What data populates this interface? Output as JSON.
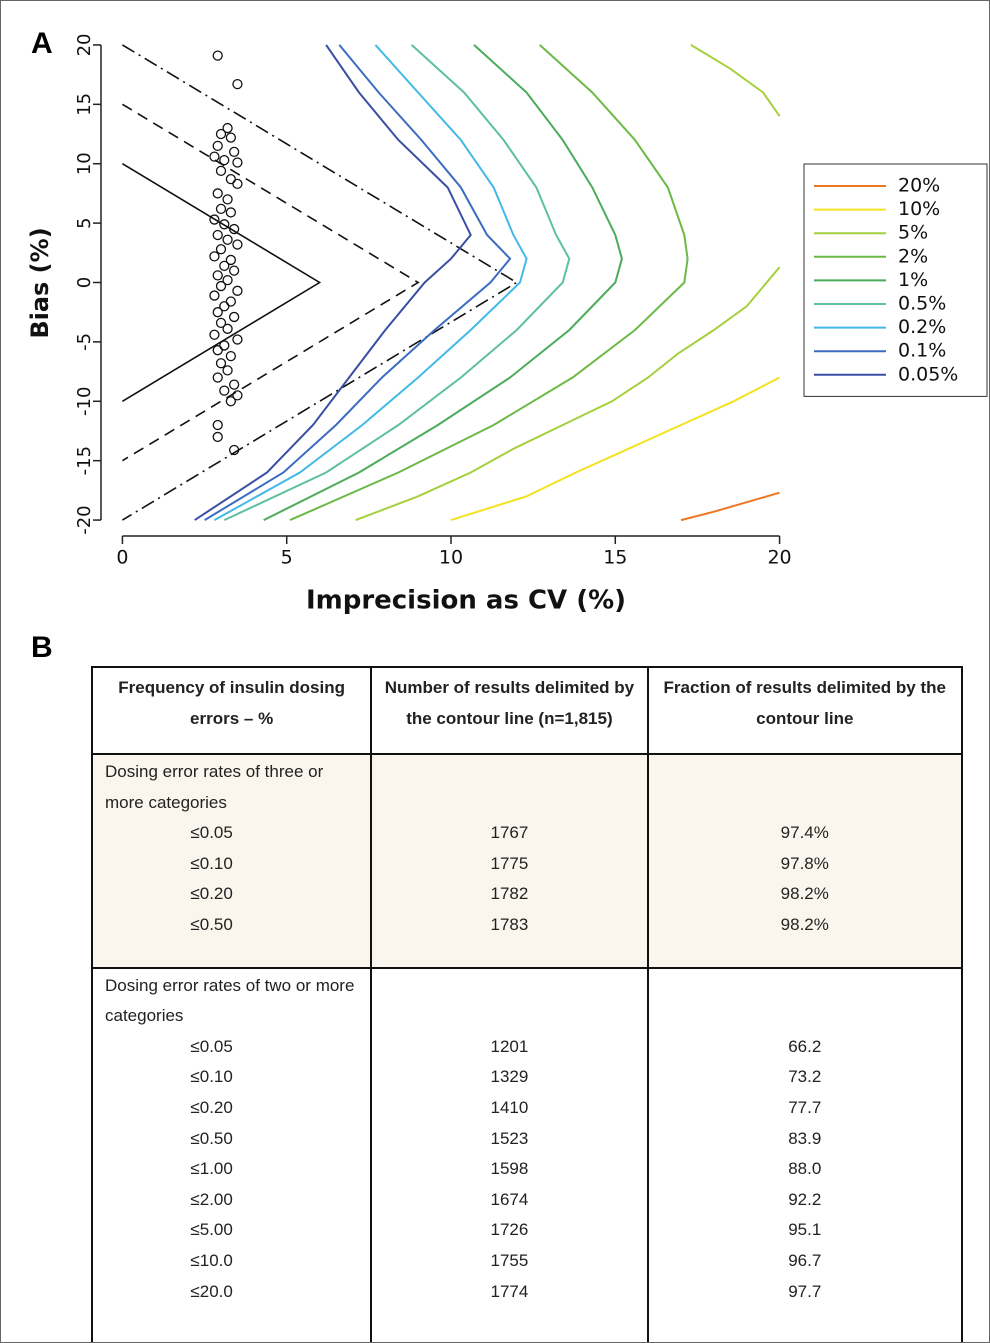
{
  "panel_labels": [
    "A",
    "B"
  ],
  "chart_data": {
    "type": "contour",
    "x_label": "Imprecision as CV (%)",
    "y_label": "Bias (%)",
    "xlim": [
      -0.5,
      20.5
    ],
    "xticks": [
      0,
      5,
      10,
      15,
      20
    ],
    "ylim": [
      -20.5,
      20.5
    ],
    "yticks": [
      -20,
      -15,
      -10,
      -5,
      0,
      5,
      10,
      15,
      20
    ],
    "legend": "right",
    "series": [
      {
        "name": "20%",
        "color": "#ee7622",
        "x": [
          20,
          19.0,
          18.0,
          17.0
        ],
        "y": [
          -17.7,
          -18.5,
          -19.3,
          -20
        ]
      },
      {
        "name": "10%",
        "color": "#f3e21f",
        "x": [
          20,
          18.6,
          17.0,
          15.4,
          13.8,
          12.3,
          10.0
        ],
        "y": [
          -8,
          -10,
          -12,
          -14,
          -16,
          -18,
          -20
        ]
      },
      {
        "name": "5%",
        "color": "#a6cf3d",
        "x": [
          17.3,
          18.5,
          19.5,
          20,
          null,
          20,
          19.0,
          18.0,
          16.9,
          16.0,
          14.9,
          13.4,
          11.9,
          10.6,
          9.0,
          7.1
        ],
        "y": [
          20,
          18,
          16,
          14,
          null,
          1.3,
          -2,
          -4,
          -6,
          -8,
          -10,
          -12,
          -14,
          -16,
          -18,
          -20
        ]
      },
      {
        "name": "2%",
        "color": "#6cba45",
        "x": [
          12.7,
          14.3,
          15.6,
          16.6,
          17.1,
          17.2,
          17.1,
          15.6,
          13.7,
          11.3,
          8.4,
          5.1
        ],
        "y": [
          20,
          16,
          12,
          8,
          4,
          2,
          0,
          -4,
          -8,
          -12,
          -16,
          -20
        ]
      },
      {
        "name": "1%",
        "color": "#4aab5a",
        "x": [
          10.7,
          12.3,
          13.4,
          14.3,
          15.0,
          15.2,
          15.0,
          13.6,
          11.8,
          9.6,
          7.2,
          4.3
        ],
        "y": [
          20,
          16,
          12,
          8,
          4,
          2,
          0,
          -4,
          -8,
          -12,
          -16,
          -20
        ]
      },
      {
        "name": "0.5%",
        "color": "#5dc09f",
        "x": [
          8.8,
          10.4,
          11.6,
          12.6,
          13.2,
          13.6,
          13.4,
          12.0,
          10.3,
          8.4,
          6.2,
          3.1
        ],
        "y": [
          20,
          16,
          12,
          8,
          4,
          2,
          0,
          -4,
          -8,
          -12,
          -16,
          -20
        ]
      },
      {
        "name": "0.2%",
        "color": "#43b9e8",
        "x": [
          7.7,
          9.0,
          10.3,
          11.3,
          11.9,
          12.3,
          12.1,
          10.6,
          9.0,
          7.3,
          5.4,
          2.8
        ],
        "y": [
          20,
          16,
          12,
          8,
          4,
          2,
          0,
          -4,
          -8,
          -12,
          -16,
          -20
        ]
      },
      {
        "name": "0.1%",
        "color": "#3b6cc2",
        "x": [
          6.6,
          7.8,
          9.1,
          10.3,
          11.1,
          11.8,
          11.2,
          9.5,
          7.9,
          6.5,
          4.9,
          2.5
        ],
        "y": [
          20,
          16,
          12,
          8,
          4,
          2,
          0,
          -4,
          -8,
          -12,
          -16,
          -20
        ]
      },
      {
        "name": "0.05%",
        "color": "#3a4ea3",
        "x": [
          6.2,
          7.2,
          8.4,
          9.9,
          10.6,
          10.0,
          9.2,
          8.0,
          6.9,
          5.8,
          4.4,
          2.2
        ],
        "y": [
          20,
          16,
          12,
          8,
          4,
          2,
          0,
          -4,
          -8,
          -12,
          -16,
          -20
        ]
      }
    ],
    "reference_lines": [
      {
        "style": "solid",
        "x": [
          0,
          6,
          0
        ],
        "y": [
          10,
          0,
          -10
        ]
      },
      {
        "style": "dashed",
        "x": [
          0,
          9,
          0
        ],
        "y": [
          15,
          0,
          -15
        ]
      },
      {
        "style": "dashdot",
        "x": [
          0,
          12,
          0
        ],
        "y": [
          20,
          0,
          -20
        ]
      }
    ],
    "points": {
      "x": [
        2.9,
        3.5,
        3.2,
        3.0,
        3.3,
        2.9,
        3.4,
        2.8,
        3.1,
        3.5,
        3.0,
        3.3,
        3.5,
        2.9,
        3.2,
        3.0,
        3.3,
        2.8,
        3.1,
        3.4,
        2.9,
        3.2,
        3.5,
        3.0,
        2.8,
        3.3,
        3.1,
        3.4,
        2.9,
        3.2,
        3.0,
        3.5,
        2.8,
        3.3,
        3.1,
        2.9,
        3.4,
        3.0,
        3.2,
        2.8,
        3.5,
        3.1,
        2.9,
        3.3,
        3.0,
        3.2,
        2.9,
        3.4,
        3.1,
        3.5,
        3.3,
        2.9,
        2.9,
        3.4
      ],
      "y": [
        19.1,
        16.7,
        13.0,
        12.5,
        12.2,
        11.5,
        11.0,
        10.6,
        10.3,
        10.1,
        9.4,
        8.7,
        8.3,
        7.5,
        7.0,
        6.2,
        5.9,
        5.3,
        4.9,
        4.5,
        4.0,
        3.6,
        3.2,
        2.8,
        2.2,
        1.9,
        1.4,
        1.0,
        0.6,
        0.2,
        -0.3,
        -0.7,
        -1.1,
        -1.6,
        -2.0,
        -2.5,
        -2.9,
        -3.4,
        -3.9,
        -4.4,
        -4.8,
        -5.3,
        -5.7,
        -6.2,
        -6.8,
        -7.4,
        -8.0,
        -8.6,
        -9.1,
        -9.5,
        -10.0,
        -12.0,
        -13.0,
        -14.1
      ]
    }
  },
  "table": {
    "header": [
      "Frequency of insulin dosing errors – %",
      "Number of results delimited by the contour line (n=1,815)",
      "Fraction of results delimited by the contour line"
    ],
    "sections": [
      {
        "title": "Dosing error rates of three or more categories",
        "rows": [
          [
            "≤0.05",
            "1767",
            "97.4%"
          ],
          [
            "≤0.10",
            "1775",
            "97.8%"
          ],
          [
            "≤0.20",
            "1782",
            "98.2%"
          ],
          [
            "≤0.50",
            "1783",
            "98.2%"
          ]
        ]
      },
      {
        "title": "Dosing error rates of two  or more categories",
        "rows": [
          [
            "≤0.05",
            "1201",
            "66.2"
          ],
          [
            "≤0.10",
            "1329",
            "73.2"
          ],
          [
            "≤0.20",
            "1410",
            "77.7"
          ],
          [
            "≤0.50",
            "1523",
            "83.9"
          ],
          [
            "≤1.00",
            "1598",
            "88.0"
          ],
          [
            "≤2.00",
            "1674",
            "92.2"
          ],
          [
            "≤5.00",
            "1726",
            "95.1"
          ],
          [
            "≤10.0",
            "1755",
            "96.7"
          ],
          [
            "≤20.0",
            "1774",
            "97.7"
          ]
        ]
      }
    ]
  }
}
